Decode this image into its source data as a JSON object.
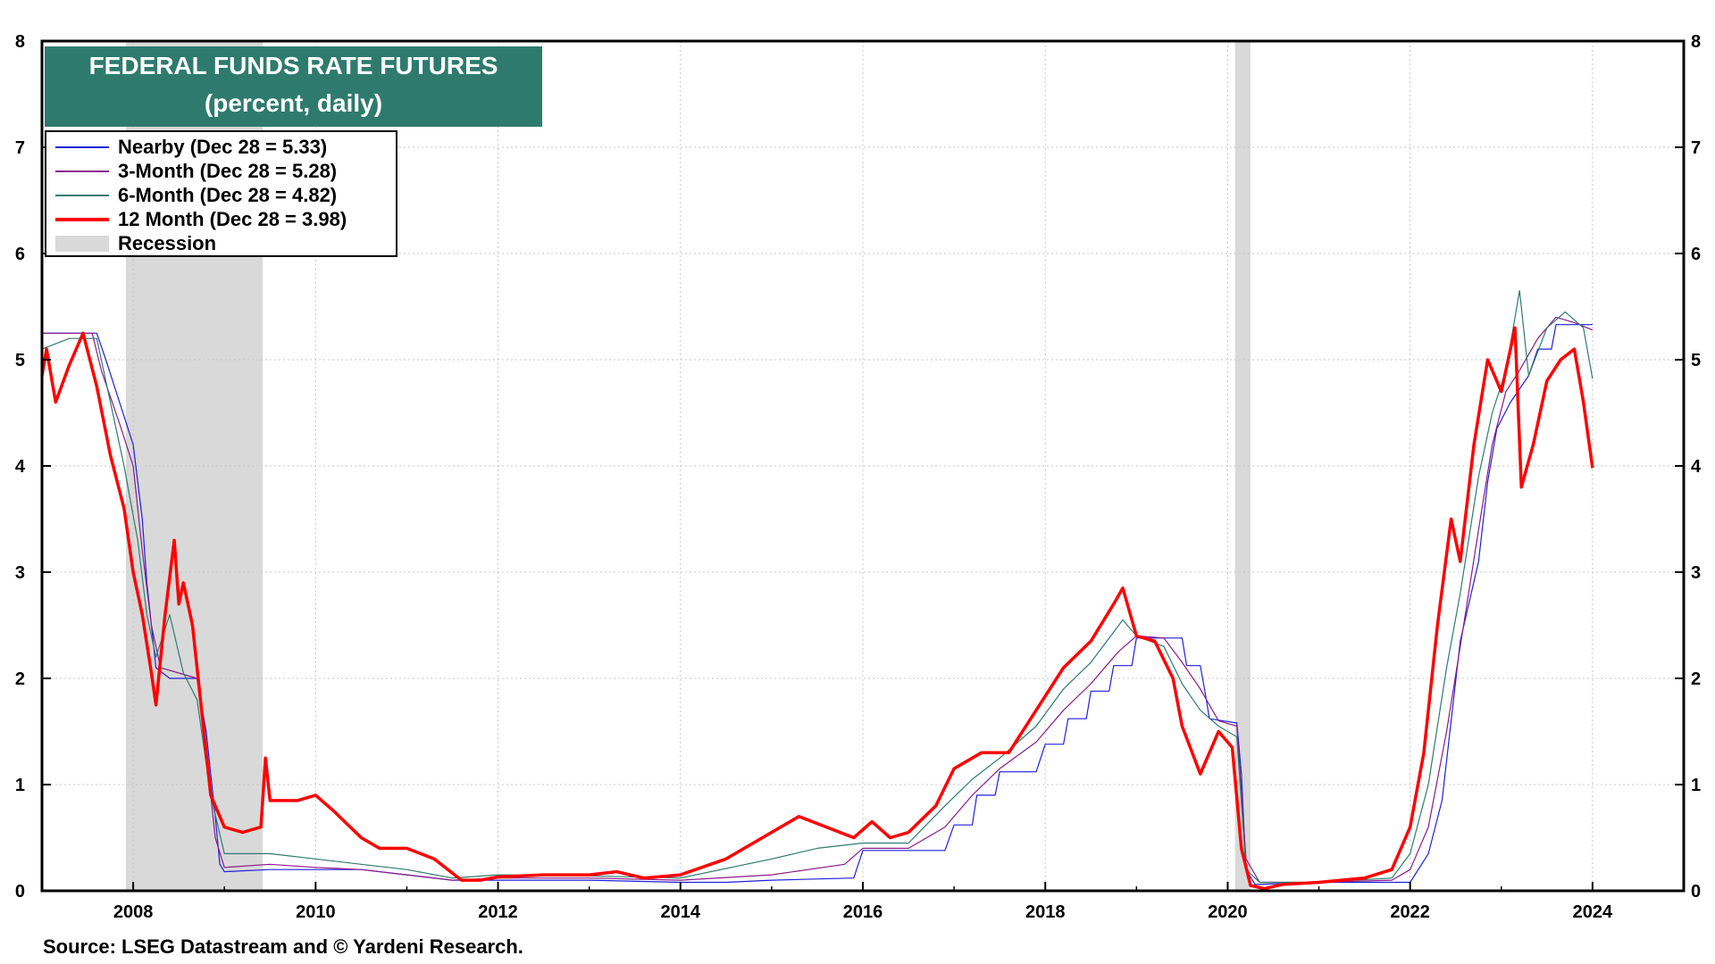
{
  "chart_data": {
    "type": "line",
    "title": "FEDERAL FUNDS RATE FUTURES",
    "subtitle": "(percent, daily)",
    "source": "Source: LSEG Datastream and © Yardeni Research.",
    "xlim": [
      2007.0,
      2025.0
    ],
    "ylim": [
      0,
      8
    ],
    "x_ticks": [
      2008,
      2010,
      2012,
      2014,
      2016,
      2018,
      2020,
      2022,
      2024
    ],
    "x_tick_labels": [
      "2008",
      "2010",
      "2012",
      "2014",
      "2016",
      "2018",
      "2020",
      "2022",
      "2024"
    ],
    "y_ticks": [
      0,
      1,
      2,
      3,
      4,
      5,
      6,
      7,
      8
    ],
    "y_tick_labels": [
      "0",
      "1",
      "2",
      "3",
      "4",
      "5",
      "6",
      "7",
      "8"
    ],
    "recessions": [
      [
        2007.92,
        2009.42
      ],
      [
        2020.08,
        2020.25
      ]
    ],
    "legend": [
      {
        "label": "Nearby (Dec 28 = 5.33)",
        "color": "#1f1fdc",
        "kind": "line"
      },
      {
        "label": "3-Month (Dec 28 = 5.28)",
        "color": "#8b1a8b",
        "kind": "line"
      },
      {
        "label": "6-Month (Dec 28 = 4.82)",
        "color": "#2e7b6e",
        "kind": "line"
      },
      {
        "label": "12 Month (Dec 28 = 3.98)",
        "color": "#ff0000",
        "kind": "thick"
      },
      {
        "label": "Recession",
        "color": "#d9d9d9",
        "kind": "block"
      }
    ],
    "series": [
      {
        "name": "Nearby",
        "color": "#1f1fdc",
        "width": 1.2,
        "points": [
          [
            2007.0,
            5.25
          ],
          [
            2007.6,
            5.25
          ],
          [
            2007.7,
            5.0
          ],
          [
            2007.85,
            4.6
          ],
          [
            2008.0,
            4.2
          ],
          [
            2008.1,
            3.5
          ],
          [
            2008.15,
            2.9
          ],
          [
            2008.25,
            2.1
          ],
          [
            2008.4,
            2.0
          ],
          [
            2008.7,
            2.0
          ],
          [
            2008.8,
            1.5
          ],
          [
            2008.9,
            0.7
          ],
          [
            2008.95,
            0.25
          ],
          [
            2009.0,
            0.18
          ],
          [
            2009.5,
            0.2
          ],
          [
            2010.0,
            0.2
          ],
          [
            2010.5,
            0.2
          ],
          [
            2011.0,
            0.15
          ],
          [
            2011.5,
            0.1
          ],
          [
            2012.0,
            0.1
          ],
          [
            2013.0,
            0.1
          ],
          [
            2014.0,
            0.08
          ],
          [
            2014.5,
            0.08
          ],
          [
            2015.0,
            0.1
          ],
          [
            2015.9,
            0.12
          ],
          [
            2016.0,
            0.38
          ],
          [
            2016.9,
            0.38
          ],
          [
            2017.0,
            0.62
          ],
          [
            2017.2,
            0.62
          ],
          [
            2017.25,
            0.9
          ],
          [
            2017.45,
            0.9
          ],
          [
            2017.5,
            1.12
          ],
          [
            2017.9,
            1.12
          ],
          [
            2018.0,
            1.38
          ],
          [
            2018.2,
            1.38
          ],
          [
            2018.25,
            1.62
          ],
          [
            2018.45,
            1.62
          ],
          [
            2018.5,
            1.88
          ],
          [
            2018.7,
            1.88
          ],
          [
            2018.75,
            2.12
          ],
          [
            2018.95,
            2.12
          ],
          [
            2019.0,
            2.38
          ],
          [
            2019.5,
            2.38
          ],
          [
            2019.55,
            2.12
          ],
          [
            2019.7,
            2.12
          ],
          [
            2019.75,
            1.88
          ],
          [
            2019.8,
            1.62
          ],
          [
            2020.1,
            1.58
          ],
          [
            2020.15,
            1.1
          ],
          [
            2020.2,
            0.2
          ],
          [
            2020.3,
            0.06
          ],
          [
            2021.0,
            0.08
          ],
          [
            2022.0,
            0.08
          ],
          [
            2022.2,
            0.35
          ],
          [
            2022.35,
            0.85
          ],
          [
            2022.45,
            1.6
          ],
          [
            2022.55,
            2.35
          ],
          [
            2022.75,
            3.1
          ],
          [
            2022.85,
            3.85
          ],
          [
            2022.95,
            4.35
          ],
          [
            2023.1,
            4.6
          ],
          [
            2023.3,
            4.85
          ],
          [
            2023.4,
            5.1
          ],
          [
            2023.55,
            5.1
          ],
          [
            2023.6,
            5.33
          ],
          [
            2024.0,
            5.33
          ]
        ]
      },
      {
        "name": "3-Month",
        "color": "#8b1a8b",
        "width": 1.2,
        "points": [
          [
            2007.0,
            5.25
          ],
          [
            2007.55,
            5.25
          ],
          [
            2007.65,
            4.9
          ],
          [
            2007.85,
            4.4
          ],
          [
            2008.0,
            4.0
          ],
          [
            2008.1,
            3.2
          ],
          [
            2008.2,
            2.5
          ],
          [
            2008.3,
            2.1
          ],
          [
            2008.5,
            2.05
          ],
          [
            2008.7,
            2.0
          ],
          [
            2008.8,
            1.3
          ],
          [
            2008.9,
            0.5
          ],
          [
            2009.0,
            0.22
          ],
          [
            2009.5,
            0.25
          ],
          [
            2010.0,
            0.22
          ],
          [
            2010.5,
            0.2
          ],
          [
            2011.0,
            0.15
          ],
          [
            2011.5,
            0.1
          ],
          [
            2012.0,
            0.12
          ],
          [
            2013.0,
            0.12
          ],
          [
            2014.0,
            0.1
          ],
          [
            2015.0,
            0.15
          ],
          [
            2015.8,
            0.25
          ],
          [
            2016.0,
            0.4
          ],
          [
            2016.5,
            0.4
          ],
          [
            2016.9,
            0.6
          ],
          [
            2017.2,
            0.9
          ],
          [
            2017.5,
            1.15
          ],
          [
            2017.9,
            1.4
          ],
          [
            2018.2,
            1.7
          ],
          [
            2018.5,
            1.95
          ],
          [
            2018.8,
            2.25
          ],
          [
            2019.0,
            2.4
          ],
          [
            2019.3,
            2.38
          ],
          [
            2019.5,
            2.15
          ],
          [
            2019.7,
            1.9
          ],
          [
            2019.9,
            1.6
          ],
          [
            2020.1,
            1.55
          ],
          [
            2020.2,
            0.3
          ],
          [
            2020.35,
            0.08
          ],
          [
            2021.0,
            0.08
          ],
          [
            2021.8,
            0.1
          ],
          [
            2022.0,
            0.2
          ],
          [
            2022.2,
            0.6
          ],
          [
            2022.4,
            1.5
          ],
          [
            2022.55,
            2.3
          ],
          [
            2022.75,
            3.4
          ],
          [
            2022.9,
            4.2
          ],
          [
            2023.05,
            4.7
          ],
          [
            2023.2,
            4.9
          ],
          [
            2023.4,
            5.2
          ],
          [
            2023.6,
            5.4
          ],
          [
            2023.8,
            5.35
          ],
          [
            2024.0,
            5.28
          ]
        ]
      },
      {
        "name": "6-Month",
        "color": "#2e7b6e",
        "width": 1.2,
        "points": [
          [
            2007.0,
            5.1
          ],
          [
            2007.3,
            5.2
          ],
          [
            2007.6,
            5.2
          ],
          [
            2007.75,
            4.6
          ],
          [
            2007.9,
            4.0
          ],
          [
            2008.05,
            3.3
          ],
          [
            2008.15,
            2.6
          ],
          [
            2008.25,
            2.2
          ],
          [
            2008.4,
            2.6
          ],
          [
            2008.55,
            2.05
          ],
          [
            2008.7,
            1.8
          ],
          [
            2008.85,
            0.9
          ],
          [
            2009.0,
            0.35
          ],
          [
            2009.5,
            0.35
          ],
          [
            2010.0,
            0.3
          ],
          [
            2010.5,
            0.25
          ],
          [
            2011.0,
            0.2
          ],
          [
            2011.5,
            0.12
          ],
          [
            2012.0,
            0.15
          ],
          [
            2013.0,
            0.14
          ],
          [
            2014.0,
            0.12
          ],
          [
            2015.0,
            0.3
          ],
          [
            2015.5,
            0.4
          ],
          [
            2016.0,
            0.45
          ],
          [
            2016.5,
            0.45
          ],
          [
            2016.9,
            0.8
          ],
          [
            2017.2,
            1.05
          ],
          [
            2017.5,
            1.25
          ],
          [
            2017.9,
            1.55
          ],
          [
            2018.2,
            1.9
          ],
          [
            2018.5,
            2.15
          ],
          [
            2018.85,
            2.55
          ],
          [
            2019.0,
            2.4
          ],
          [
            2019.3,
            2.3
          ],
          [
            2019.5,
            1.95
          ],
          [
            2019.7,
            1.7
          ],
          [
            2019.9,
            1.55
          ],
          [
            2020.1,
            1.45
          ],
          [
            2020.2,
            0.2
          ],
          [
            2020.35,
            0.08
          ],
          [
            2021.0,
            0.08
          ],
          [
            2021.8,
            0.12
          ],
          [
            2022.0,
            0.35
          ],
          [
            2022.2,
            1.0
          ],
          [
            2022.4,
            2.1
          ],
          [
            2022.55,
            2.8
          ],
          [
            2022.75,
            3.9
          ],
          [
            2022.9,
            4.5
          ],
          [
            2023.05,
            4.9
          ],
          [
            2023.2,
            5.65
          ],
          [
            2023.3,
            4.85
          ],
          [
            2023.5,
            5.3
          ],
          [
            2023.7,
            5.45
          ],
          [
            2023.9,
            5.3
          ],
          [
            2024.0,
            4.82
          ]
        ]
      },
      {
        "name": "12 Month",
        "color": "#ff0000",
        "width": 3.5,
        "points": [
          [
            2007.0,
            4.85
          ],
          [
            2007.05,
            5.1
          ],
          [
            2007.15,
            4.6
          ],
          [
            2007.3,
            4.95
          ],
          [
            2007.45,
            5.25
          ],
          [
            2007.6,
            4.75
          ],
          [
            2007.75,
            4.1
          ],
          [
            2007.9,
            3.6
          ],
          [
            2008.0,
            3.0
          ],
          [
            2008.1,
            2.6
          ],
          [
            2008.2,
            2.05
          ],
          [
            2008.25,
            1.75
          ],
          [
            2008.35,
            2.6
          ],
          [
            2008.45,
            3.3
          ],
          [
            2008.5,
            2.7
          ],
          [
            2008.55,
            2.9
          ],
          [
            2008.65,
            2.5
          ],
          [
            2008.75,
            1.7
          ],
          [
            2008.85,
            0.9
          ],
          [
            2009.0,
            0.6
          ],
          [
            2009.2,
            0.55
          ],
          [
            2009.4,
            0.6
          ],
          [
            2009.45,
            1.25
          ],
          [
            2009.5,
            0.85
          ],
          [
            2009.8,
            0.85
          ],
          [
            2010.0,
            0.9
          ],
          [
            2010.2,
            0.75
          ],
          [
            2010.5,
            0.5
          ],
          [
            2010.7,
            0.4
          ],
          [
            2011.0,
            0.4
          ],
          [
            2011.3,
            0.3
          ],
          [
            2011.6,
            0.1
          ],
          [
            2011.8,
            0.1
          ],
          [
            2012.0,
            0.13
          ],
          [
            2012.5,
            0.15
          ],
          [
            2013.0,
            0.15
          ],
          [
            2013.3,
            0.18
          ],
          [
            2013.6,
            0.12
          ],
          [
            2014.0,
            0.15
          ],
          [
            2014.5,
            0.3
          ],
          [
            2015.0,
            0.55
          ],
          [
            2015.3,
            0.7
          ],
          [
            2015.6,
            0.6
          ],
          [
            2015.9,
            0.5
          ],
          [
            2016.1,
            0.65
          ],
          [
            2016.3,
            0.5
          ],
          [
            2016.5,
            0.55
          ],
          [
            2016.8,
            0.8
          ],
          [
            2017.0,
            1.15
          ],
          [
            2017.3,
            1.3
          ],
          [
            2017.6,
            1.3
          ],
          [
            2017.9,
            1.7
          ],
          [
            2018.2,
            2.1
          ],
          [
            2018.5,
            2.35
          ],
          [
            2018.75,
            2.7
          ],
          [
            2018.85,
            2.85
          ],
          [
            2019.0,
            2.4
          ],
          [
            2019.2,
            2.35
          ],
          [
            2019.4,
            2.0
          ],
          [
            2019.5,
            1.55
          ],
          [
            2019.7,
            1.1
          ],
          [
            2019.9,
            1.5
          ],
          [
            2020.05,
            1.35
          ],
          [
            2020.15,
            0.4
          ],
          [
            2020.25,
            0.05
          ],
          [
            2020.4,
            0.02
          ],
          [
            2020.6,
            0.06
          ],
          [
            2021.0,
            0.08
          ],
          [
            2021.5,
            0.12
          ],
          [
            2021.8,
            0.2
          ],
          [
            2022.0,
            0.6
          ],
          [
            2022.15,
            1.3
          ],
          [
            2022.3,
            2.5
          ],
          [
            2022.45,
            3.5
          ],
          [
            2022.55,
            3.1
          ],
          [
            2022.7,
            4.2
          ],
          [
            2022.85,
            5.0
          ],
          [
            2023.0,
            4.7
          ],
          [
            2023.15,
            5.3
          ],
          [
            2023.22,
            3.8
          ],
          [
            2023.35,
            4.2
          ],
          [
            2023.5,
            4.8
          ],
          [
            2023.65,
            5.0
          ],
          [
            2023.8,
            5.1
          ],
          [
            2023.9,
            4.6
          ],
          [
            2024.0,
            3.98
          ]
        ]
      }
    ]
  }
}
